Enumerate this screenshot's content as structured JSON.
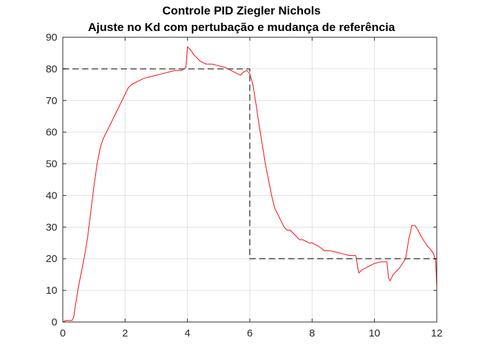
{
  "chart_data": {
    "type": "line",
    "title": "Controle PID Ziegler Nichols",
    "subtitle": "Ajuste no Kd com pertubação e mudança de referência",
    "xlabel": "",
    "ylabel": "",
    "xlim": [
      0,
      12
    ],
    "ylim": [
      0,
      90
    ],
    "grid": true,
    "x_ticks": [
      0,
      2,
      4,
      6,
      8,
      10,
      12
    ],
    "y_ticks": [
      0,
      10,
      20,
      30,
      40,
      50,
      60,
      70,
      80,
      90
    ],
    "series": [
      {
        "color": "#ff0000",
        "style": "solid",
        "x": [
          0,
          0.1,
          0.3,
          0.35,
          0.4,
          0.5,
          0.6,
          0.7,
          0.8,
          0.9,
          1.0,
          1.1,
          1.2,
          1.3,
          1.4,
          1.5,
          1.6,
          1.7,
          1.8,
          1.9,
          2.0,
          2.1,
          2.2,
          2.3,
          2.4,
          2.6,
          2.8,
          3.0,
          3.2,
          3.4,
          3.6,
          3.8,
          3.9,
          3.95,
          4.0,
          4.1,
          4.2,
          4.4,
          4.6,
          4.8,
          5.0,
          5.2,
          5.4,
          5.6,
          5.7,
          5.8,
          5.9,
          6.0,
          6.1,
          6.2,
          6.3,
          6.4,
          6.5,
          6.6,
          6.7,
          6.8,
          6.9,
          7.0,
          7.1,
          7.2,
          7.3,
          7.4,
          7.5,
          7.6,
          7.7,
          7.8,
          7.9,
          8.0,
          8.1,
          8.2,
          8.4,
          8.6,
          8.8,
          9.0,
          9.2,
          9.4,
          9.45,
          9.5,
          9.6,
          9.8,
          10.0,
          10.2,
          10.4,
          10.45,
          10.5,
          10.6,
          10.8,
          11.0,
          11.1,
          11.2,
          11.3,
          11.4,
          11.5,
          11.6,
          11.7,
          11.8,
          11.9,
          11.97,
          12.0
        ],
        "y": [
          0,
          0.5,
          0.5,
          1.5,
          5,
          11,
          16,
          21,
          27,
          35,
          43,
          50,
          55,
          58,
          60,
          62,
          64,
          66,
          68,
          70,
          72,
          74,
          75,
          75.5,
          76,
          77,
          77.5,
          78,
          78.5,
          79,
          79.5,
          79.5,
          80,
          80.5,
          87,
          86,
          84.5,
          82.5,
          81.5,
          81.5,
          81,
          80.5,
          79.5,
          78.5,
          78,
          79,
          79.5,
          78.5,
          75,
          69,
          62,
          56,
          50,
          45,
          40,
          36,
          34,
          32,
          30,
          29,
          29,
          28,
          27,
          26,
          26,
          25.5,
          25,
          25,
          24.5,
          24,
          22.5,
          22.5,
          22,
          21.5,
          21,
          21,
          18,
          15.5,
          16.5,
          17.5,
          18.5,
          19,
          19,
          14,
          13,
          15,
          17,
          20,
          26,
          30.5,
          30.5,
          29,
          27,
          25.5,
          24,
          23,
          21.5,
          19,
          11
        ]
      },
      {
        "color": "#666666",
        "style": "dashed",
        "x": [
          0,
          6,
          6,
          12
        ],
        "y": [
          80,
          80,
          20,
          20
        ]
      }
    ]
  }
}
